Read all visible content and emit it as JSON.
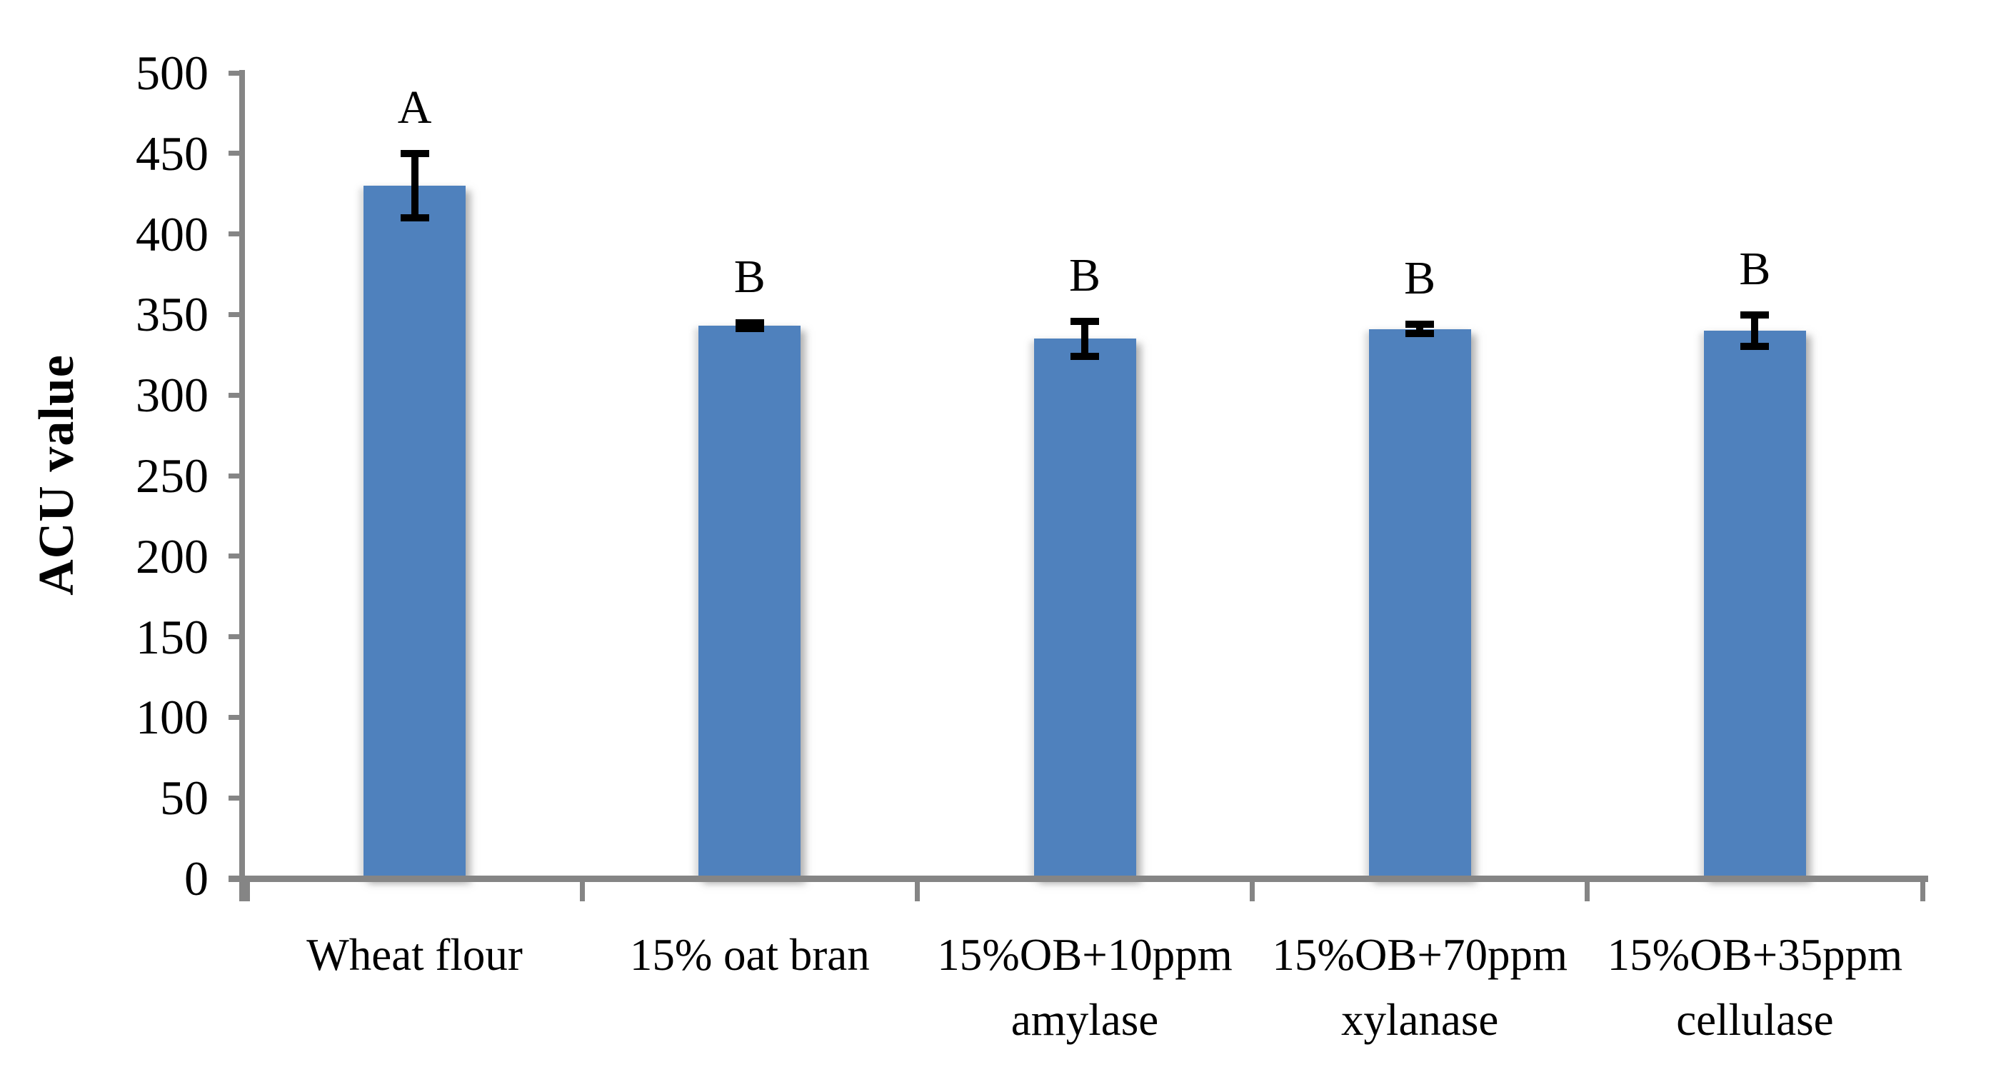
{
  "chart_data": {
    "type": "bar",
    "title": "",
    "xlabel": "",
    "ylabel": "ACU value",
    "ylim": [
      0,
      500
    ],
    "yticks": [
      0,
      50,
      100,
      150,
      200,
      250,
      300,
      350,
      400,
      450,
      500
    ],
    "grid": false,
    "legend_position": "none",
    "categories": [
      "Wheat flour",
      "15% oat bran",
      "15%OB+10ppm amylase",
      "15%OB+70ppm xylanase",
      "15%OB+35ppm cellulase"
    ],
    "category_label_lines": [
      [
        "Wheat flour"
      ],
      [
        "15% oat bran"
      ],
      [
        "15%OB+10ppm",
        "amylase"
      ],
      [
        "15%OB+70ppm",
        "xylanase"
      ],
      [
        "15%OB+35ppm",
        "cellulase"
      ]
    ],
    "values": [
      430,
      343,
      335,
      341,
      340
    ],
    "error_bars": [
      22,
      4,
      13,
      5,
      12
    ],
    "significance_letters": [
      "A",
      "B",
      "B",
      "B",
      "B"
    ],
    "colors": {
      "bar_fill": "#4F81BD",
      "axis_line": "#858585",
      "error_bar": "#000000",
      "text": "#000000",
      "background": "#FFFFFF"
    }
  }
}
